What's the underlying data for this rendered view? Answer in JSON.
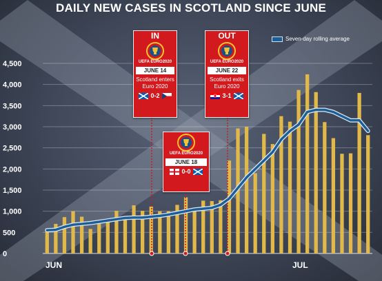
{
  "title": "DAILY NEW CASES IN SCOTLAND SINCE JUNE",
  "legend_label": "Seven-day rolling average",
  "colors": {
    "bars": "#e1b84a",
    "line": "#1d5e96",
    "line_outline": "#dbe9f5",
    "callout": "#d2191d",
    "marker": "#d2191d"
  },
  "callouts": {
    "in": {
      "heading": "IN",
      "brand": "UEFA EURO2020",
      "date": "JUNE 14",
      "desc_line1": "Scotland enters",
      "desc_line2": "Euro 2020",
      "score": "0-2",
      "flags": [
        "scotland-flag",
        "czech-flag"
      ]
    },
    "draw": {
      "brand": "UEFA EURO2020",
      "date": "JUNE 18",
      "score": "0-0",
      "flags": [
        "england-flag",
        "scotland-flag"
      ]
    },
    "out": {
      "heading": "OUT",
      "brand": "UEFA EURO2020",
      "date": "JUNE 22",
      "desc_line1": "Scotland exits",
      "desc_line2": "Euro 2020",
      "score": "3-1",
      "flags": [
        "croatia-flag",
        "scotland-flag"
      ]
    }
  },
  "chart_data": {
    "type": "bar",
    "title": "DAILY NEW CASES IN SCOTLAND SINCE JUNE",
    "x_tick_labels": [
      "JUN",
      "JUL"
    ],
    "ylim": [
      0,
      4500
    ],
    "yticks": [
      0,
      500,
      1000,
      1500,
      2000,
      2500,
      3000,
      3500,
      4000,
      4500
    ],
    "ytick_labels": [
      "0",
      "500",
      "1,000",
      "1,500",
      "2,000",
      "2,500",
      "3,000",
      "3,500",
      "4,000",
      "4,500"
    ],
    "grid": true,
    "legend_position": "top-right",
    "series": [
      {
        "name": "Daily new cases",
        "type": "bar",
        "values": [
          590,
          700,
          860,
          1000,
          870,
          580,
          700,
          780,
          1010,
          880,
          1140,
          1010,
          1110,
          1000,
          1000,
          1150,
          1330,
          1010,
          1250,
          1240,
          1260,
          2200,
          2960,
          3000,
          1900,
          2830,
          2590,
          3250,
          3120,
          3870,
          4240,
          3820,
          3110,
          2730,
          2360,
          2370,
          3800,
          2800
        ]
      },
      {
        "name": "Seven-day rolling average",
        "type": "line",
        "values": [
          550,
          560,
          630,
          680,
          700,
          720,
          750,
          780,
          810,
          840,
          850,
          850,
          870,
          890,
          920,
          960,
          1000,
          1040,
          1060,
          1080,
          1150,
          1300,
          1550,
          1800,
          2000,
          2200,
          2400,
          2700,
          2900,
          3050,
          3350,
          3400,
          3400,
          3350,
          3250,
          3150,
          3150,
          2900
        ]
      }
    ],
    "event_markers": [
      "JUNE 14",
      "JUNE 18",
      "JUNE 22"
    ]
  }
}
